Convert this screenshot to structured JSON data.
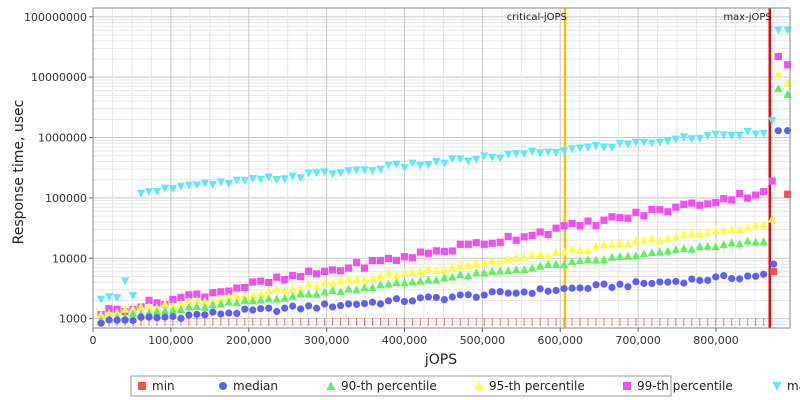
{
  "chart_data": {
    "type": "scatter",
    "xlabel": "jOPS",
    "ylabel": "Response time, usec",
    "xlim": [
      0,
      895000
    ],
    "ylim": [
      700,
      140000000
    ],
    "yscale": "log",
    "grid": true,
    "legend_position": "bottom",
    "x_ticks": [
      {
        "value": 0,
        "label": "0"
      },
      {
        "value": 100000,
        "label": "100,000"
      },
      {
        "value": 200000,
        "label": "200,000"
      },
      {
        "value": 300000,
        "label": "300,000"
      },
      {
        "value": 400000,
        "label": "400,000"
      },
      {
        "value": 500000,
        "label": "500,000"
      },
      {
        "value": 600000,
        "label": "600,000"
      },
      {
        "value": 700000,
        "label": "700,000"
      },
      {
        "value": 800000,
        "label": "800,000"
      }
    ],
    "y_ticks": [
      {
        "value": 1000,
        "label": "1000"
      },
      {
        "value": 10000,
        "label": "10000"
      },
      {
        "value": 100000,
        "label": "100000"
      },
      {
        "value": 1000000,
        "label": "1000000"
      },
      {
        "value": 10000000,
        "label": "10000000"
      },
      {
        "value": 100000000,
        "label": "100000000"
      }
    ],
    "annotations": [
      {
        "label": "critical-jOPS",
        "x": 606000,
        "color": "#ffc000"
      },
      {
        "label": "max-jOPS",
        "x": 869000,
        "color": "#e01010"
      }
    ],
    "series": [
      {
        "name": "min",
        "marker": "square",
        "color": "#f05050",
        "points": [
          [
            874000,
            6000
          ],
          [
            892000,
            115000
          ]
        ]
      },
      {
        "name": "median",
        "marker": "circle",
        "color": "#6060f0",
        "points": []
      },
      {
        "name": "90-th percentile",
        "marker": "triangle-up",
        "color": "#60f060",
        "points": []
      },
      {
        "name": "95-th percentile",
        "marker": "triangle-up",
        "color": "#ffff40",
        "points": []
      },
      {
        "name": "99-th percentile",
        "marker": "square",
        "color": "#f050f0",
        "points": []
      },
      {
        "name": "max",
        "marker": "triangle-down",
        "color": "#60e8f8",
        "points": []
      }
    ]
  }
}
